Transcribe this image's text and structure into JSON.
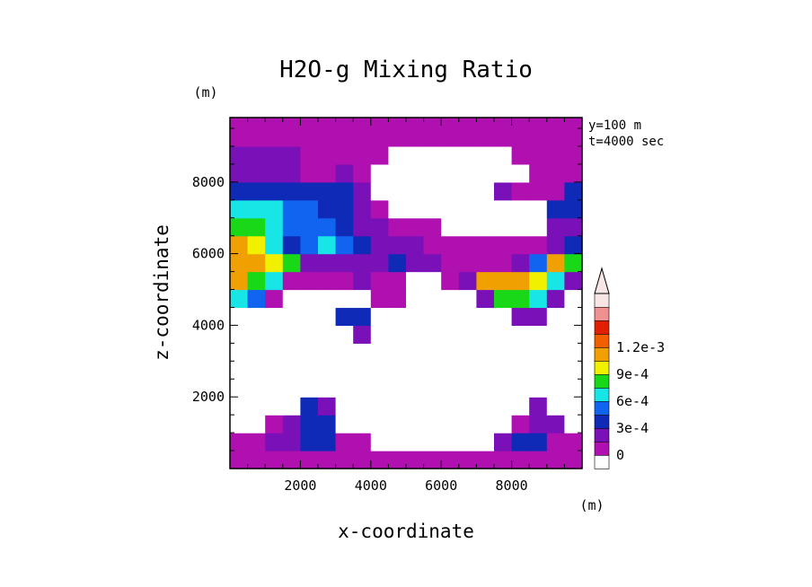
{
  "chart_data": {
    "type": "heatmap",
    "title": "H2O-g Mixing Ratio",
    "xlabel": "x-coordinate",
    "ylabel": "z-coordinate",
    "x_unit": "(m)",
    "y_unit": "(m)",
    "annotations": [
      "y=100 m",
      "t=4000 sec"
    ],
    "xlim": [
      0,
      10000
    ],
    "ylim": [
      0,
      9800
    ],
    "x_ticks": [
      2000,
      4000,
      6000,
      8000
    ],
    "y_ticks": [
      2000,
      4000,
      6000,
      8000
    ],
    "x_tick_labels": [
      "2000",
      "4000",
      "6000",
      "8000"
    ],
    "y_tick_labels": [
      "2000",
      "4000",
      "6000",
      "8000"
    ],
    "grid": false,
    "colorbar": {
      "levels": [
        0,
        0.00015,
        0.0003,
        0.00045,
        0.0006,
        0.00075,
        0.0009,
        0.00105,
        0.0012,
        0.00135
      ],
      "colors": [
        "#ffffff",
        "#b010b0",
        "#7a10b8",
        "#102ab8",
        "#1064f0",
        "#18e6e6",
        "#18d818",
        "#f0f000",
        "#f0a000",
        "#f06000",
        "#e02000",
        "#f09090",
        "#f8e6e6"
      ],
      "tick_labels": [
        "0",
        "3e-4",
        "6e-4",
        "9e-4",
        "1.2e-3"
      ],
      "tick_values": [
        0,
        0.0003,
        0.0006,
        0.0009,
        0.0012
      ],
      "extend": "max"
    },
    "grid_data": {
      "x_start": 250,
      "x_step": 500,
      "nx": 20,
      "z_start": 250,
      "z_step": 500,
      "nz": 20,
      "rows_bottom_to_top": [
        "11111111111111111111",
        "11223311000000023311",
        "00123300000000001220",
        "00003200000000000200",
        "00000000000000000000",
        "00000000000000000000",
        "00000000000000000000",
        "00000002000000000000",
        "00000033000000002200",
        "54100000110000266520",
        "86511112110012888752",
        "88762222232211112486",
        "87534543222111111123",
        "66544432211100000022",
        "55544332100000000033",
        "33333332000000021113",
        "22221121000000000111",
        "22221111100000001111",
        "11111111111111111111",
        "11111111111111111111"
      ]
    }
  },
  "colors": {
    "background": "#ffffff",
    "frame": "#000000"
  }
}
